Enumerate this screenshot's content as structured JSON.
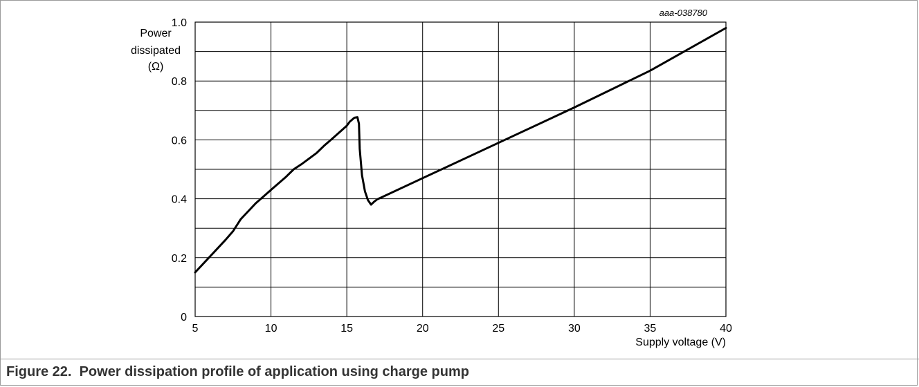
{
  "figure": {
    "code": "aaa-038780",
    "caption": "Figure 22.  Power dissipation profile of application using charge pump"
  },
  "chart_data": {
    "type": "line",
    "xlabel": "Supply voltage (V)",
    "ylabel_lines": [
      "Power",
      "dissipated",
      "(Ω)"
    ],
    "xlim": [
      5,
      40
    ],
    "ylim": [
      0,
      1.0
    ],
    "x_ticks": [
      5,
      10,
      15,
      20,
      25,
      30,
      35,
      40
    ],
    "y_ticks": [
      0,
      0.2,
      0.4,
      0.6,
      0.8,
      1.0
    ],
    "y_tick_labels": [
      "0",
      "0.2",
      "0.4",
      "0.6",
      "0.8",
      "1.0"
    ],
    "grid": true,
    "series": [
      {
        "x": [
          5,
          6,
          7,
          7.5,
          8,
          9,
          10,
          11,
          11.5,
          12,
          13,
          13.5,
          14,
          15,
          15.2,
          15.5,
          15.7,
          15.8,
          15.85,
          16,
          16.2,
          16.4,
          16.6,
          16.8,
          17,
          17.3,
          20,
          25,
          30,
          35,
          40
        ],
        "y": [
          0.15,
          0.205,
          0.26,
          0.29,
          0.33,
          0.385,
          0.43,
          0.475,
          0.5,
          0.517,
          0.555,
          0.58,
          0.602,
          0.648,
          0.662,
          0.675,
          0.677,
          0.655,
          0.57,
          0.48,
          0.425,
          0.395,
          0.38,
          0.39,
          0.398,
          0.405,
          0.47,
          0.59,
          0.71,
          0.835,
          0.98
        ]
      }
    ]
  }
}
